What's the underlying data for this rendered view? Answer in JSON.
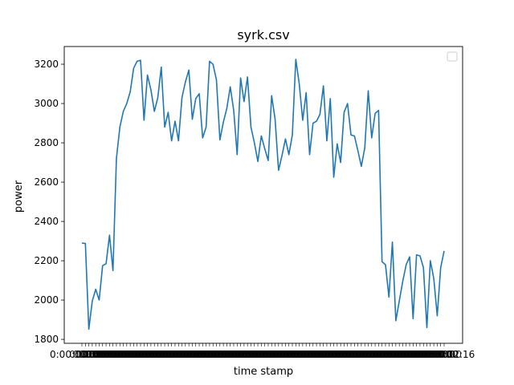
{
  "chart_data": {
    "type": "line",
    "title": "syrk.csv",
    "xlabel": "time stamp",
    "ylabel": "power",
    "ylim": [
      1780,
      3290
    ],
    "yticks": [
      1800,
      2000,
      2200,
      2400,
      2600,
      2800,
      3000,
      3200
    ],
    "legend": "top-right",
    "grid": false,
    "line_color": "#1f77b4",
    "x_tick_labels_overlapping": "0:00:00 … 0:02:16",
    "x_tick_first": "0:00:00",
    "x_tick_last": "0:02:16",
    "series": [
      {
        "values": [
          2290,
          2288,
          1852,
          1995,
          2055,
          2000,
          2175,
          2185,
          2330,
          2150,
          2720,
          2880,
          2960,
          3000,
          3060,
          3180,
          3215,
          3220,
          2915,
          3145,
          3070,
          2960,
          3030,
          3185,
          2880,
          2955,
          2810,
          2910,
          2810,
          3030,
          3110,
          3170,
          2920,
          3025,
          3050,
          2825,
          2880,
          3215,
          3200,
          3120,
          2815,
          2905,
          2975,
          3085,
          2965,
          2740,
          3130,
          3010,
          3135,
          2880,
          2800,
          2705,
          2835,
          2770,
          2710,
          3040,
          2920,
          2660,
          2735,
          2820,
          2740,
          2840,
          3225,
          3100,
          2915,
          3055,
          2740,
          2900,
          2910,
          2945,
          3090,
          2810,
          3025,
          2625,
          2795,
          2700,
          2955,
          3000,
          2840,
          2835,
          2760,
          2680,
          2775,
          3065,
          2825,
          2950,
          2965,
          2195,
          2180,
          2015,
          2295,
          1895,
          1995,
          2095,
          2180,
          2220,
          1905,
          2230,
          2225,
          2165,
          1860,
          2200,
          2110,
          1920,
          2165,
          2250
        ]
      }
    ]
  }
}
